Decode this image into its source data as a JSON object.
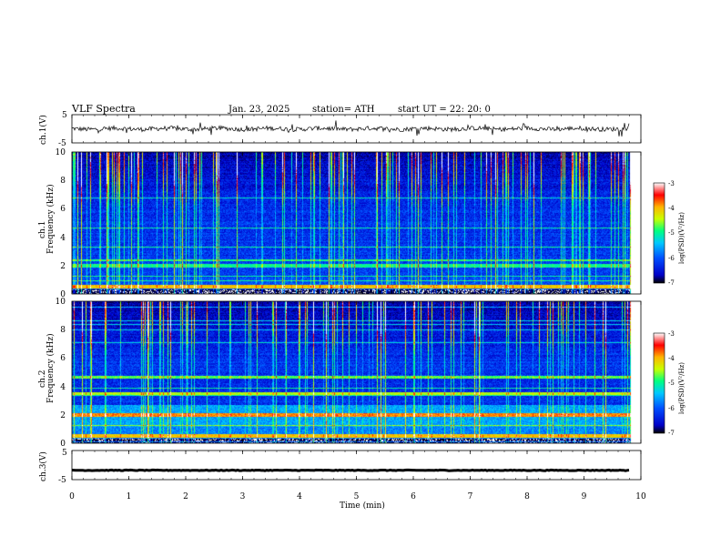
{
  "header": {
    "title": "VLF  Spectra",
    "date": "Jan. 23, 2025",
    "station": "station= ATH",
    "start": "start  UT  =    22: 20: 0"
  },
  "panels": {
    "ch1_waveform_label": "ch.1(V)",
    "ch1_spec_label": "ch.1",
    "ch2_spec_label": "ch.2",
    "freq_label": "Frequency  (kHz)",
    "ch3_waveform_label": "ch.3(V)",
    "time_label": "Time  (min)"
  },
  "colorbars": [
    {
      "label": "log(PSD)(V²/Hz)",
      "ticks": [
        "-3",
        "-4",
        "-5",
        "-6",
        "-7"
      ]
    },
    {
      "label": "log(PSD)(V²/Hz)",
      "ticks": [
        "-3",
        "-4",
        "-5",
        "-6",
        "-7"
      ]
    }
  ],
  "colors": {
    "spectrogram_colormap": [
      "#000000",
      "#0000c8",
      "#0050ff",
      "#00c8ff",
      "#00ff80",
      "#c8ff00",
      "#ffb400",
      "#ff0000",
      "#ffffff"
    ]
  },
  "chart_data": [
    {
      "type": "line",
      "panel": "ch.1 waveform",
      "ylabel": "ch.1(V)",
      "ylim": [
        -5,
        5
      ],
      "yticks": [
        "5",
        "-5"
      ],
      "xlim": [
        0,
        10
      ],
      "note_baseline": 0
    },
    {
      "type": "heatmap",
      "panel": "ch.1 spectrogram",
      "ylabel": "Frequency  (kHz)",
      "ylim": [
        0,
        10
      ],
      "yticks": [
        "0",
        "2",
        "4",
        "6",
        "8",
        "10"
      ],
      "xlim": [
        0,
        10
      ],
      "colorscale_range": [
        -7,
        -3
      ],
      "data_end_min": 9.8
    },
    {
      "type": "heatmap",
      "panel": "ch.2 spectrogram",
      "ylabel": "Frequency  (kHz)",
      "ylim": [
        0,
        10
      ],
      "yticks": [
        "0",
        "2",
        "4",
        "6",
        "8",
        "10"
      ],
      "xlim": [
        0,
        10
      ],
      "colorscale_range": [
        -7,
        -3
      ],
      "data_end_min": 9.8
    },
    {
      "type": "line",
      "panel": "ch.3 waveform",
      "ylabel": "ch.3(V)",
      "ylim": [
        -5,
        5
      ],
      "yticks": [
        "5",
        "-5"
      ],
      "xlim": [
        0,
        10
      ],
      "xticks": [
        "0",
        "1",
        "2",
        "3",
        "4",
        "5",
        "6",
        "7",
        "8",
        "9",
        "10"
      ],
      "xlabel": "Time  (min)",
      "note_level": -1.8
    }
  ]
}
